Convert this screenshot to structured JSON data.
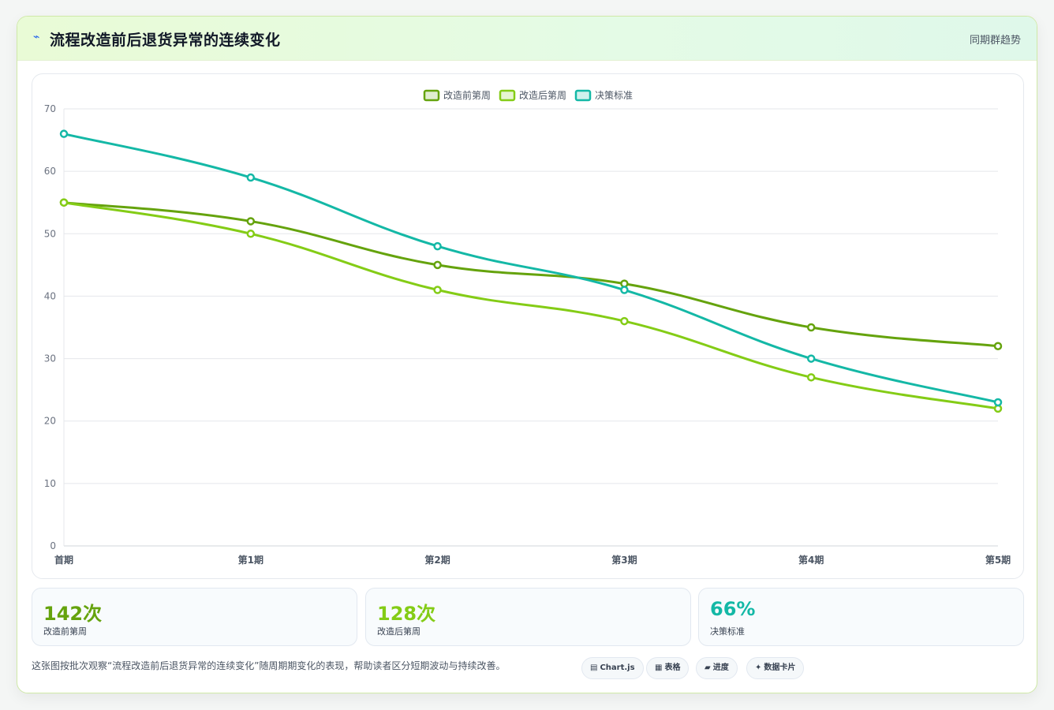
{
  "header": {
    "icon": "lightning-icon",
    "title": "流程改造前后退货异常的连续变化",
    "tag": "同期群趋势"
  },
  "chart_data": {
    "type": "line",
    "categories": [
      "首期",
      "第1期",
      "第2期",
      "第3期",
      "第4期",
      "第5期"
    ],
    "series": [
      {
        "name": "改造前第周",
        "color": "#65a30d",
        "values": [
          55,
          52,
          45,
          42,
          35,
          32
        ]
      },
      {
        "name": "改造后第周",
        "color": "#84cc16",
        "values": [
          55,
          50,
          41,
          36,
          27,
          22
        ]
      },
      {
        "name": "决策标准",
        "color": "#14b8a6",
        "values": [
          66,
          59,
          48,
          41,
          30,
          23
        ]
      }
    ],
    "ylim": [
      0,
      70
    ],
    "yticks": [
      0,
      10,
      20,
      30,
      40,
      50,
      60,
      70
    ],
    "grid": true,
    "legend": "top-center"
  },
  "stats": [
    {
      "value": "142次",
      "label": "改造前第周",
      "color": "#65a30d"
    },
    {
      "value": "128次",
      "label": "改造后第周",
      "color": "#84cc16"
    },
    {
      "value": "66%",
      "label": "决策标准",
      "color": "#14b8a6"
    }
  ],
  "footer": {
    "text": "这张图按批次观察“流程改造前后退货异常的连续变化”随周期期变化的表现，帮助读者区分短期波动与持续改善。",
    "pills": [
      {
        "icon": "chart-icon",
        "glyph": "▤",
        "label": "Chart.js"
      },
      {
        "icon": "table-icon",
        "glyph": "▦",
        "label": "表格"
      },
      {
        "icon": "progress-icon",
        "glyph": "▰",
        "label": "进度"
      },
      {
        "icon": "sparkle-icon",
        "glyph": "✦",
        "label": "数据卡片"
      }
    ]
  }
}
